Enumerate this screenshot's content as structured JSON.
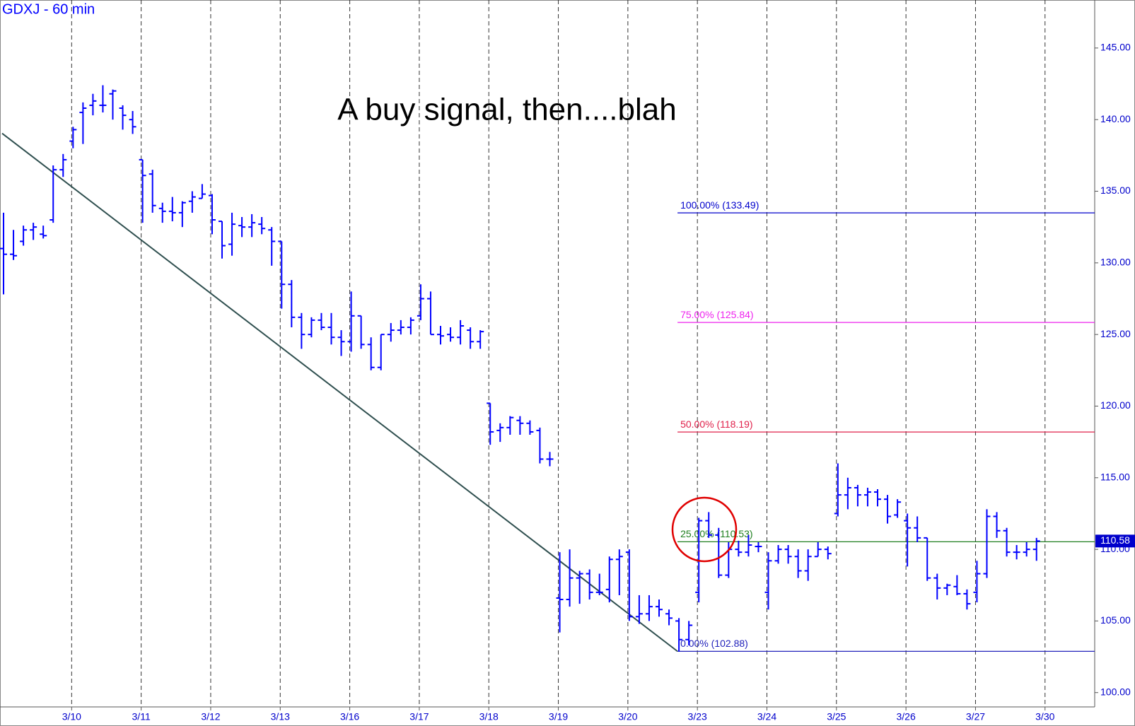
{
  "chart_data": {
    "type": "ohlc",
    "title": "GDXJ - 60 min",
    "annotation": "A buy signal, then....blah",
    "color": "#0000ff",
    "categories": [
      null,
      null,
      null,
      null,
      null,
      null,
      null,
      "3/10",
      null,
      null,
      null,
      null,
      null,
      null,
      "3/11",
      null,
      null,
      null,
      null,
      null,
      null,
      "3/12",
      null,
      null,
      null,
      null,
      null,
      null,
      "3/13",
      null,
      null,
      null,
      null,
      null,
      null,
      "3/16",
      null,
      null,
      null,
      null,
      null,
      null,
      "3/17",
      null,
      null,
      null,
      null,
      null,
      null,
      "3/18",
      null,
      null,
      null,
      null,
      null,
      null,
      "3/19",
      null,
      null,
      null,
      null,
      null,
      null,
      "3/20",
      null,
      null,
      null,
      null,
      null,
      null,
      "3/23",
      null,
      null,
      null,
      null,
      null,
      null,
      "3/24",
      null,
      null,
      null,
      null,
      null,
      null,
      "3/25",
      null,
      null,
      null,
      null,
      null,
      null,
      "3/26",
      null,
      null,
      null,
      null,
      null,
      null,
      "3/27",
      null,
      null,
      null,
      null,
      null,
      null,
      "3/30",
      null,
      null,
      null,
      null
    ],
    "ohlc": [
      [
        131,
        133.5,
        127.8,
        130.6
      ],
      [
        130.6,
        132.3,
        130.2,
        130.5
      ],
      [
        131.5,
        132.6,
        131.2,
        132.3
      ],
      [
        132.3,
        132.8,
        131.6,
        132.5
      ],
      [
        132,
        132.6,
        131.7,
        131.9
      ],
      [
        133,
        136.8,
        132.8,
        136.5
      ],
      [
        136.5,
        137.6,
        136,
        137.2
      ],
      [
        138.5,
        139.5,
        138,
        139.3
      ],
      [
        140.5,
        141.2,
        138.3,
        140.8
      ],
      [
        141,
        141.8,
        140.3,
        141.3
      ],
      [
        141,
        142.4,
        140.5,
        141
      ],
      [
        141.8,
        142.1,
        140,
        142
      ],
      [
        140.8,
        141,
        139.3,
        140.3
      ],
      [
        140,
        140.6,
        139,
        139.5
      ],
      [
        137.2,
        137.2,
        132.8,
        136.1
      ],
      [
        136.2,
        136.5,
        133.5,
        134
      ],
      [
        133.8,
        134.2,
        132.8,
        133.6
      ],
      [
        133.6,
        134.6,
        132.9,
        133.5
      ],
      [
        133.5,
        134.3,
        132.5,
        134.2
      ],
      [
        134.3,
        135,
        133.5,
        134.6
      ],
      [
        134.5,
        135.5,
        134.5,
        134.8
      ],
      [
        134.7,
        134.8,
        132,
        133
      ],
      [
        132.9,
        132.9,
        130.3,
        131.2
      ],
      [
        131.3,
        133.5,
        130.5,
        132.7
      ],
      [
        132.6,
        133.2,
        131.8,
        132.5
      ],
      [
        132.5,
        133.4,
        131.8,
        132.8
      ],
      [
        132.7,
        133.2,
        132,
        132.4
      ],
      [
        132.3,
        132.5,
        129.8,
        131.5
      ],
      [
        131.5,
        131.5,
        126.8,
        128.5
      ],
      [
        128.5,
        128.8,
        125.5,
        126.2
      ],
      [
        126.2,
        126.5,
        124,
        125
      ],
      [
        125,
        126.2,
        124.8,
        126
      ],
      [
        126,
        126.5,
        125.3,
        125.5
      ],
      [
        125.5,
        126.5,
        124.3,
        124.8
      ],
      [
        124.8,
        125.3,
        123.5,
        124.5
      ],
      [
        124.5,
        128,
        123.8,
        126.3
      ],
      [
        126.3,
        126.3,
        124,
        124.3
      ],
      [
        124.3,
        124.8,
        122.5,
        122.7
      ],
      [
        122.7,
        125,
        122.5,
        125
      ],
      [
        125,
        125.8,
        124.5,
        125.3
      ],
      [
        125.3,
        126,
        125,
        125.5
      ],
      [
        125.5,
        126.2,
        125,
        126
      ],
      [
        126.3,
        128.5,
        126,
        127.5
      ],
      [
        127.5,
        128,
        125,
        125
      ],
      [
        125,
        125.6,
        124.3,
        124.9
      ],
      [
        125,
        125.5,
        124.5,
        124.8
      ],
      [
        124.8,
        126,
        124.3,
        125.6
      ],
      [
        125.3,
        125.5,
        124,
        124.5
      ],
      [
        124.5,
        125.3,
        124,
        125.2
      ],
      [
        120.2,
        120.2,
        117.3,
        118.2
      ],
      [
        118.3,
        118.8,
        117.5,
        118.5
      ],
      [
        118.5,
        119.3,
        118,
        119.2
      ],
      [
        119,
        119.3,
        118,
        118.8
      ],
      [
        118.8,
        119,
        118,
        118.2
      ],
      [
        118.3,
        118.5,
        116,
        116.3
      ],
      [
        116.3,
        116.8,
        115.8,
        116.3
      ],
      [
        106.6,
        109.8,
        104.2,
        106.5
      ],
      [
        106.5,
        110,
        106,
        108
      ],
      [
        108,
        108.5,
        106.2,
        108.3
      ],
      [
        108.3,
        108.6,
        106.5,
        107
      ],
      [
        107,
        108.3,
        106.8,
        107
      ],
      [
        107.2,
        109.5,
        106.3,
        109.3
      ],
      [
        109.3,
        110,
        106.8,
        109.5
      ],
      [
        109.8,
        110,
        105,
        105.3
      ],
      [
        105.3,
        106.8,
        104.8,
        105.5
      ],
      [
        105.5,
        106.8,
        105,
        106
      ],
      [
        106,
        106.5,
        105.3,
        105.8
      ],
      [
        105.5,
        105.8,
        104.7,
        105.2
      ],
      [
        105,
        105.2,
        102.88,
        103.7
      ],
      [
        103.7,
        105,
        103.3,
        104.7
      ],
      [
        107,
        112.2,
        106.3,
        112
      ],
      [
        112,
        112.6,
        110.8,
        111
      ],
      [
        111,
        111.5,
        108,
        108.2
      ],
      [
        108.2,
        110.5,
        108,
        110
      ],
      [
        110,
        110.6,
        109.5,
        109.8
      ],
      [
        109.8,
        111,
        109.5,
        110.3
      ],
      [
        110.2,
        110.5,
        109.8,
        110.2
      ],
      [
        107,
        109.8,
        105.8,
        109.2
      ],
      [
        109.2,
        110.3,
        109,
        110
      ],
      [
        110,
        110.3,
        109,
        109.5
      ],
      [
        109.5,
        110,
        108,
        108.5
      ],
      [
        108.5,
        110,
        107.8,
        109.5
      ],
      [
        109.5,
        110.5,
        109.5,
        110
      ],
      [
        110,
        110.2,
        109.3,
        109.7
      ],
      [
        112.5,
        116,
        112.3,
        113.8
      ],
      [
        113.8,
        115,
        112.8,
        114.3
      ],
      [
        114.3,
        114.5,
        113,
        113.8
      ],
      [
        113.8,
        114.3,
        113,
        114
      ],
      [
        114,
        114.2,
        113,
        113.5
      ],
      [
        113.5,
        113.8,
        111.8,
        112.3
      ],
      [
        112.4,
        113.5,
        112.2,
        113.3
      ],
      [
        112,
        112.5,
        108.8,
        111.5
      ],
      [
        111.5,
        112.3,
        110.5,
        110.8
      ],
      [
        110.8,
        110.8,
        107.8,
        108
      ],
      [
        108,
        108.3,
        106.5,
        107.3
      ],
      [
        107.3,
        107.6,
        106.8,
        107.5
      ],
      [
        107.4,
        108.2,
        106.8,
        106.9
      ],
      [
        106.9,
        107.2,
        105.8,
        106.2
      ],
      [
        107,
        109.2,
        106.3,
        108.3
      ],
      [
        108.3,
        112.8,
        108,
        112.3
      ],
      [
        112.3,
        112.6,
        110.8,
        111.3
      ],
      [
        111.3,
        111.5,
        109.5,
        109.8
      ],
      [
        109.8,
        110.3,
        109.3,
        109.8
      ],
      [
        109.8,
        110.5,
        109.5,
        110
      ],
      [
        110,
        110.8,
        109.2,
        110.58
      ],
      null,
      null,
      null,
      null,
      null
    ],
    "ylim": [
      99,
      148.35
    ],
    "yticks": [
      {
        "value": 100,
        "label": "100.00"
      },
      {
        "value": 105,
        "label": "105.00"
      },
      {
        "value": 110,
        "label": "110.00"
      },
      {
        "value": 115,
        "label": "115.00"
      },
      {
        "value": 120,
        "label": "120.00"
      },
      {
        "value": 125,
        "label": "125.00"
      },
      {
        "value": 130,
        "label": "130.00"
      },
      {
        "value": 135,
        "label": "135.00"
      },
      {
        "value": 140,
        "label": "140.00"
      },
      {
        "value": 145,
        "label": "145.00"
      }
    ],
    "trendline": [
      139.04,
      102.88
    ],
    "trendline_color": "#2f4f4f",
    "fib_levels": [
      {
        "label": "100.00% (133.49)",
        "value": 133.49,
        "color": "#0000cc"
      },
      {
        "label": "75.00% (125.84)",
        "value": 125.84,
        "color": "#ee22ee"
      },
      {
        "label": "50.00% (118.19)",
        "value": 118.19,
        "color": "#e0204a"
      },
      {
        "label": "25.00% (110.53)",
        "value": 110.53,
        "color": "#1f7f1f"
      },
      {
        "label": "0.00% (102.88)",
        "value": 102.88,
        "color": "#2222bb"
      }
    ]
  }
}
